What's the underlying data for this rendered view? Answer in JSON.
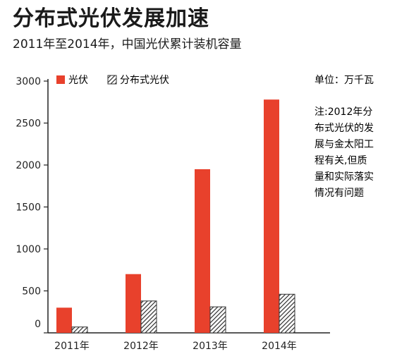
{
  "header": {
    "title": "分布式光伏发展加速",
    "subtitle": "2011年至2014年，中国光伏累计装机容量"
  },
  "chart_data": {
    "type": "bar",
    "title": "分布式光伏发展加速",
    "subtitle": "2011年至2014年，中国光伏累计装机容量",
    "categories": [
      "2011年",
      "2012年",
      "2013年",
      "2014年"
    ],
    "series": [
      {
        "name": "光伏",
        "values": [
          300,
          700,
          1950,
          2780
        ],
        "color": "#e8412c",
        "pattern": "solid"
      },
      {
        "name": "分布式光伏",
        "values": [
          70,
          380,
          310,
          460
        ],
        "color": "#333333",
        "pattern": "diagonal-hatch"
      }
    ],
    "yticks": [
      "0",
      "500",
      "1000",
      "1500",
      "2000",
      "2500",
      "3000"
    ],
    "ylim": [
      0,
      3000
    ],
    "unit_label": "单位：万千瓦",
    "note_lines": [
      "注:2012年分",
      "布式光伏的发",
      "展与金太阳工",
      "程有关,但质",
      "量和实际落实",
      "情况有问题"
    ],
    "legend_position": "top-left",
    "grid": false
  }
}
